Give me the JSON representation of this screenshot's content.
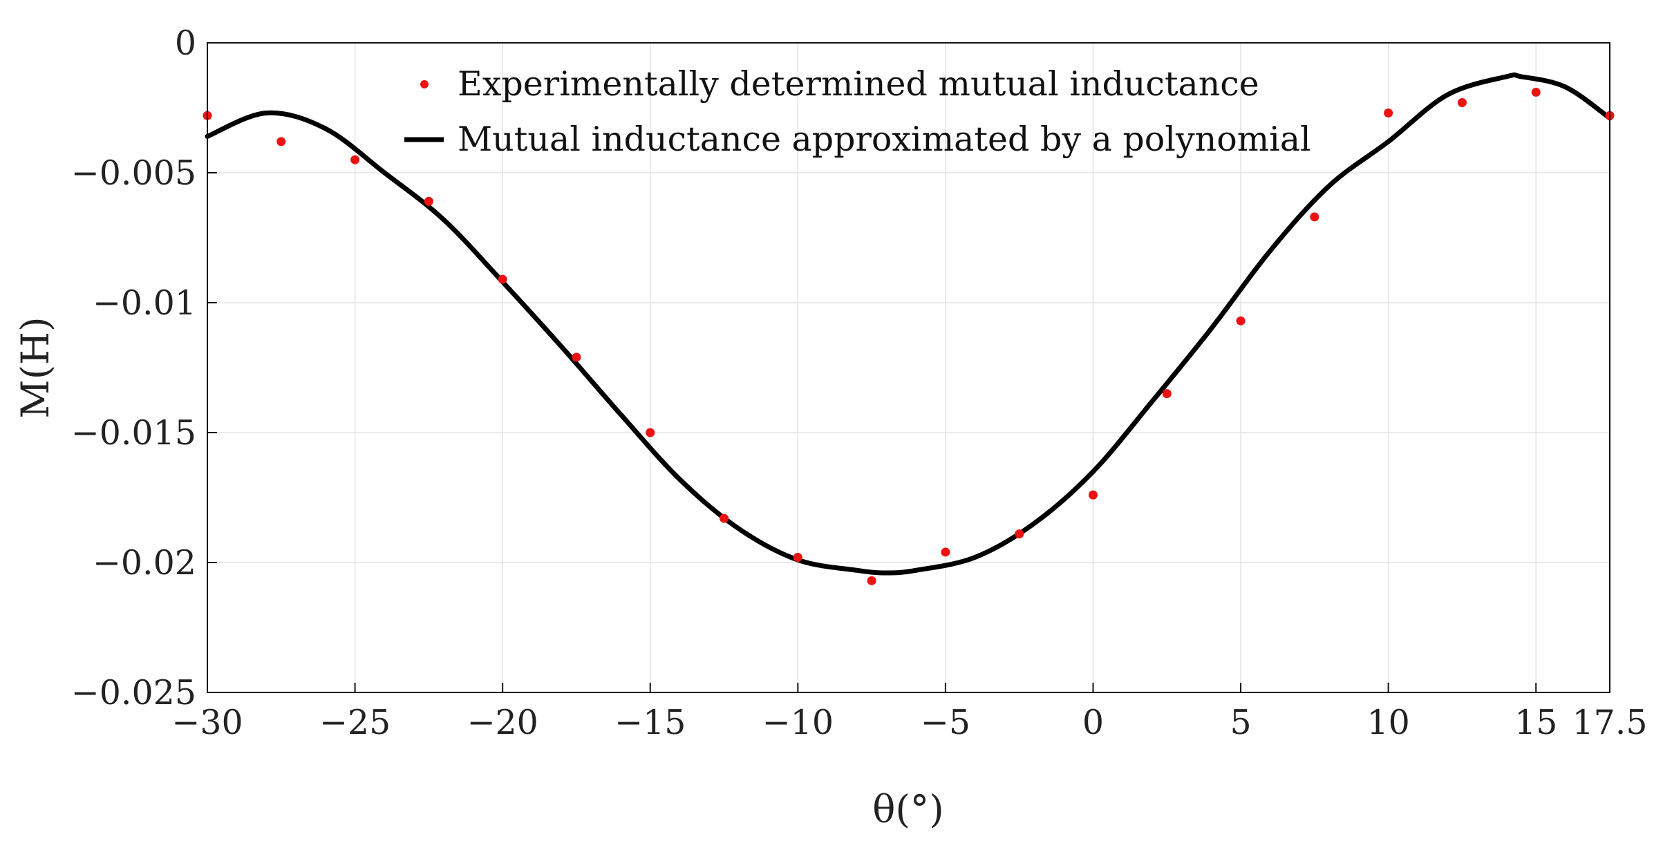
{
  "chart_data": {
    "type": "line",
    "title": "",
    "xlabel": "θ(°)",
    "ylabel": "M(H)",
    "xlim": [
      -30,
      17.5
    ],
    "ylim": [
      -0.025,
      0
    ],
    "grid": true,
    "legend_position": "top-center",
    "x_ticks": [
      -30,
      -25,
      -20,
      -15,
      -10,
      -5,
      0,
      5,
      10,
      15,
      17.5
    ],
    "x_tick_labels": [
      "−30",
      "−25",
      "−20",
      "−15",
      "−10",
      "−5",
      "0",
      "5",
      "10",
      "15",
      "17.5"
    ],
    "y_ticks": [
      0,
      -0.005,
      -0.01,
      -0.015,
      -0.02,
      -0.025
    ],
    "y_tick_labels": [
      "0",
      "−0.005",
      "−0.01",
      "−0.015",
      "−0.02",
      "−0.025"
    ],
    "series": [
      {
        "name": "Experimentally determined mutual inductance",
        "kind": "scatter",
        "color": "#ee1111",
        "x": [
          -30,
          -27.5,
          -25,
          -22.5,
          -20,
          -17.5,
          -15,
          -12.5,
          -10,
          -7.5,
          -5,
          -2.5,
          0,
          2.5,
          5,
          7.5,
          10,
          12.5,
          15,
          17.5
        ],
        "y": [
          -0.0028,
          -0.0038,
          -0.0045,
          -0.0061,
          -0.0091,
          -0.0121,
          -0.015,
          -0.0183,
          -0.0198,
          -0.0207,
          -0.0196,
          -0.0189,
          -0.0174,
          -0.0135,
          -0.0107,
          -0.0067,
          -0.0027,
          -0.0023,
          -0.0019,
          -0.0028
        ]
      },
      {
        "name": "Mutual inductance approximated by a polynomial",
        "kind": "line",
        "color": "#000000",
        "x": [
          -30,
          -28,
          -26,
          -24,
          -22,
          -20,
          -18,
          -16,
          -14,
          -12,
          -10,
          -8,
          -7,
          -6,
          -4,
          -2,
          0,
          2,
          4,
          6,
          8,
          10,
          12,
          14,
          14.5,
          16,
          17.5
        ],
        "y": [
          -0.0036,
          -0.0027,
          -0.0033,
          -0.005,
          -0.0068,
          -0.0092,
          -0.0117,
          -0.0143,
          -0.0168,
          -0.0187,
          -0.0199,
          -0.0203,
          -0.0204,
          -0.0203,
          -0.0198,
          -0.0185,
          -0.0165,
          -0.0138,
          -0.011,
          -0.008,
          -0.0055,
          -0.0038,
          -0.002,
          -0.0013,
          -0.0013,
          -0.0017,
          -0.0029
        ]
      }
    ]
  }
}
